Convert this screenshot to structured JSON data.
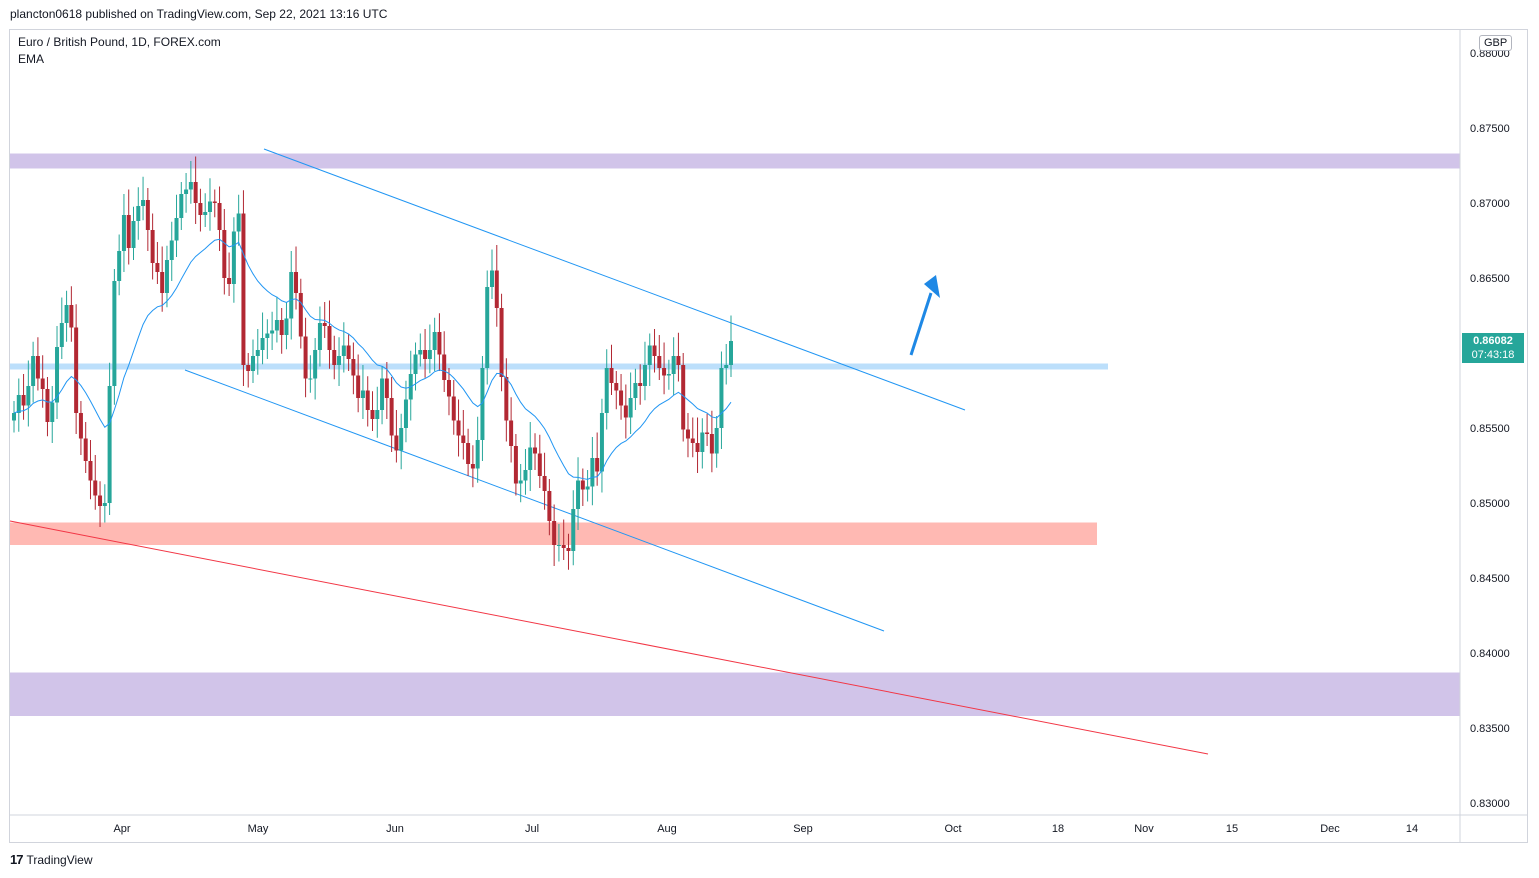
{
  "header": {
    "publisher_text": "plancton0618 published on TradingView.com, Sep 22, 2021 13:16 UTC"
  },
  "symbol": {
    "title": "Euro / British Pound, 1D, FOREX.com",
    "indicator": "EMA"
  },
  "price_axis": {
    "currency": "GBP",
    "last_price": "0.86082",
    "countdown": "07:43:18"
  },
  "footer": {
    "brand": "TradingView",
    "logo_icon": "tradingview-logo-icon"
  },
  "colors": {
    "up": "#26a69a",
    "down": "#b22833",
    "ema": "#2196f3",
    "trendline": "#2196f3",
    "support": "#f23645",
    "zone_purple": "#b39ddb",
    "zone_blue": "#90caf9",
    "zone_red": "#ff8a80",
    "arrow": "#1e88e5"
  },
  "chart_data": {
    "type": "candlestick",
    "title": "Euro / British Pound, 1D, FOREX.com",
    "x_ticks": [
      "Apr",
      "May",
      "Jun",
      "Jul",
      "Aug",
      "Sep",
      "Oct",
      "18",
      "Nov",
      "15",
      "Dec",
      "14"
    ],
    "y_ticks": [
      "0.88000",
      "0.87500",
      "0.87000",
      "0.86500",
      "0.86000",
      "0.85500",
      "0.85000",
      "0.84500",
      "0.84000",
      "0.83500",
      "0.83000"
    ],
    "ylim": [
      0.83,
      0.8835
    ],
    "x_range": [
      "2021-03-03",
      "2021-12-20"
    ],
    "last_price": 0.86082,
    "closes": [
      0.856,
      0.8572,
      0.8565,
      0.8578,
      0.8598,
      0.8583,
      0.8576,
      0.8554,
      0.8567,
      0.8604,
      0.862,
      0.8632,
      0.8617,
      0.856,
      0.8543,
      0.8528,
      0.8515,
      0.8505,
      0.8498,
      0.85,
      0.8578,
      0.8648,
      0.8668,
      0.8692,
      0.867,
      0.8688,
      0.8698,
      0.8702,
      0.8682,
      0.866,
      0.8654,
      0.864,
      0.8662,
      0.8675,
      0.869,
      0.8706,
      0.8709,
      0.8714,
      0.87,
      0.8692,
      0.8694,
      0.8701,
      0.87,
      0.8682,
      0.865,
      0.8646,
      0.8681,
      0.8693,
      0.8592,
      0.8588,
      0.8598,
      0.8602,
      0.861,
      0.8613,
      0.8615,
      0.8622,
      0.8612,
      0.8623,
      0.8654,
      0.864,
      0.8611,
      0.8583,
      0.8583,
      0.8602,
      0.862,
      0.8618,
      0.8602,
      0.8592,
      0.8598,
      0.8605,
      0.8596,
      0.8585,
      0.857,
      0.8575,
      0.8562,
      0.8556,
      0.8562,
      0.8583,
      0.857,
      0.8545,
      0.8535,
      0.855,
      0.8569,
      0.8586,
      0.8599,
      0.8602,
      0.8596,
      0.8602,
      0.8614,
      0.8599,
      0.8582,
      0.8571,
      0.8555,
      0.8545,
      0.854,
      0.8526,
      0.8523,
      0.8542,
      0.859,
      0.8644,
      0.8655,
      0.863,
      0.8584,
      0.8555,
      0.8538,
      0.8513,
      0.8515,
      0.8522,
      0.8537,
      0.8533,
      0.8518,
      0.8508,
      0.8488,
      0.8472,
      0.8472,
      0.847,
      0.8468,
      0.8496,
      0.8515,
      0.8509,
      0.8511,
      0.853,
      0.8521,
      0.856,
      0.859,
      0.858,
      0.8575,
      0.8565,
      0.8557,
      0.857,
      0.858,
      0.8578,
      0.8592,
      0.8605,
      0.8598,
      0.859,
      0.8585,
      0.8586,
      0.8598,
      0.8592,
      0.8549,
      0.8543,
      0.854,
      0.8534,
      0.8547,
      0.8546,
      0.8533,
      0.855,
      0.859,
      0.8592,
      0.8608
    ],
    "ema_label": "EMA",
    "annotations": [
      "descending channel",
      "support zones",
      "breakout arrow"
    ]
  }
}
